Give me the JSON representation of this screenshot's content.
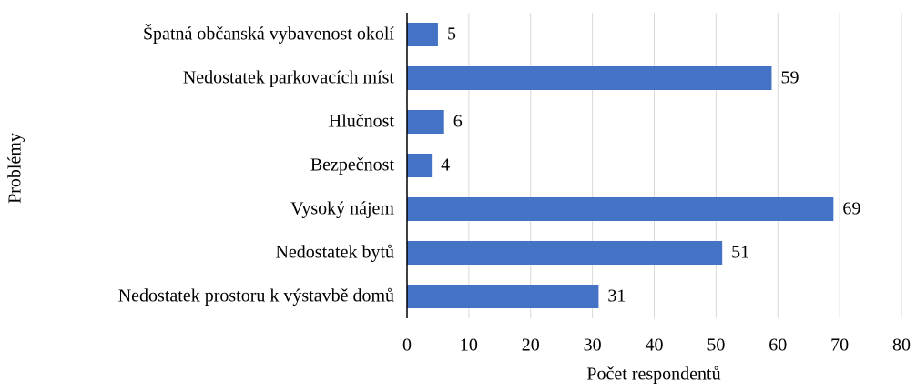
{
  "chart_data": {
    "type": "bar",
    "orientation": "horizontal",
    "x_label": "Počet respondentů",
    "y_label": "Problémy",
    "categories": [
      "Špatná občanská vybavenost okolí",
      "Nedostatek parkovacích míst",
      "Hlučnost",
      "Bezpečnost",
      "Vysoký nájem",
      "Nedostatek bytů",
      "Nedostatek prostoru k výstavbě domů"
    ],
    "values": [
      5,
      59,
      6,
      4,
      69,
      51,
      31
    ],
    "color": "#4472c4",
    "xlim": [
      0,
      80
    ],
    "xticks": [
      0,
      10,
      20,
      30,
      40,
      50,
      60,
      70,
      80
    ],
    "grid": true
  }
}
